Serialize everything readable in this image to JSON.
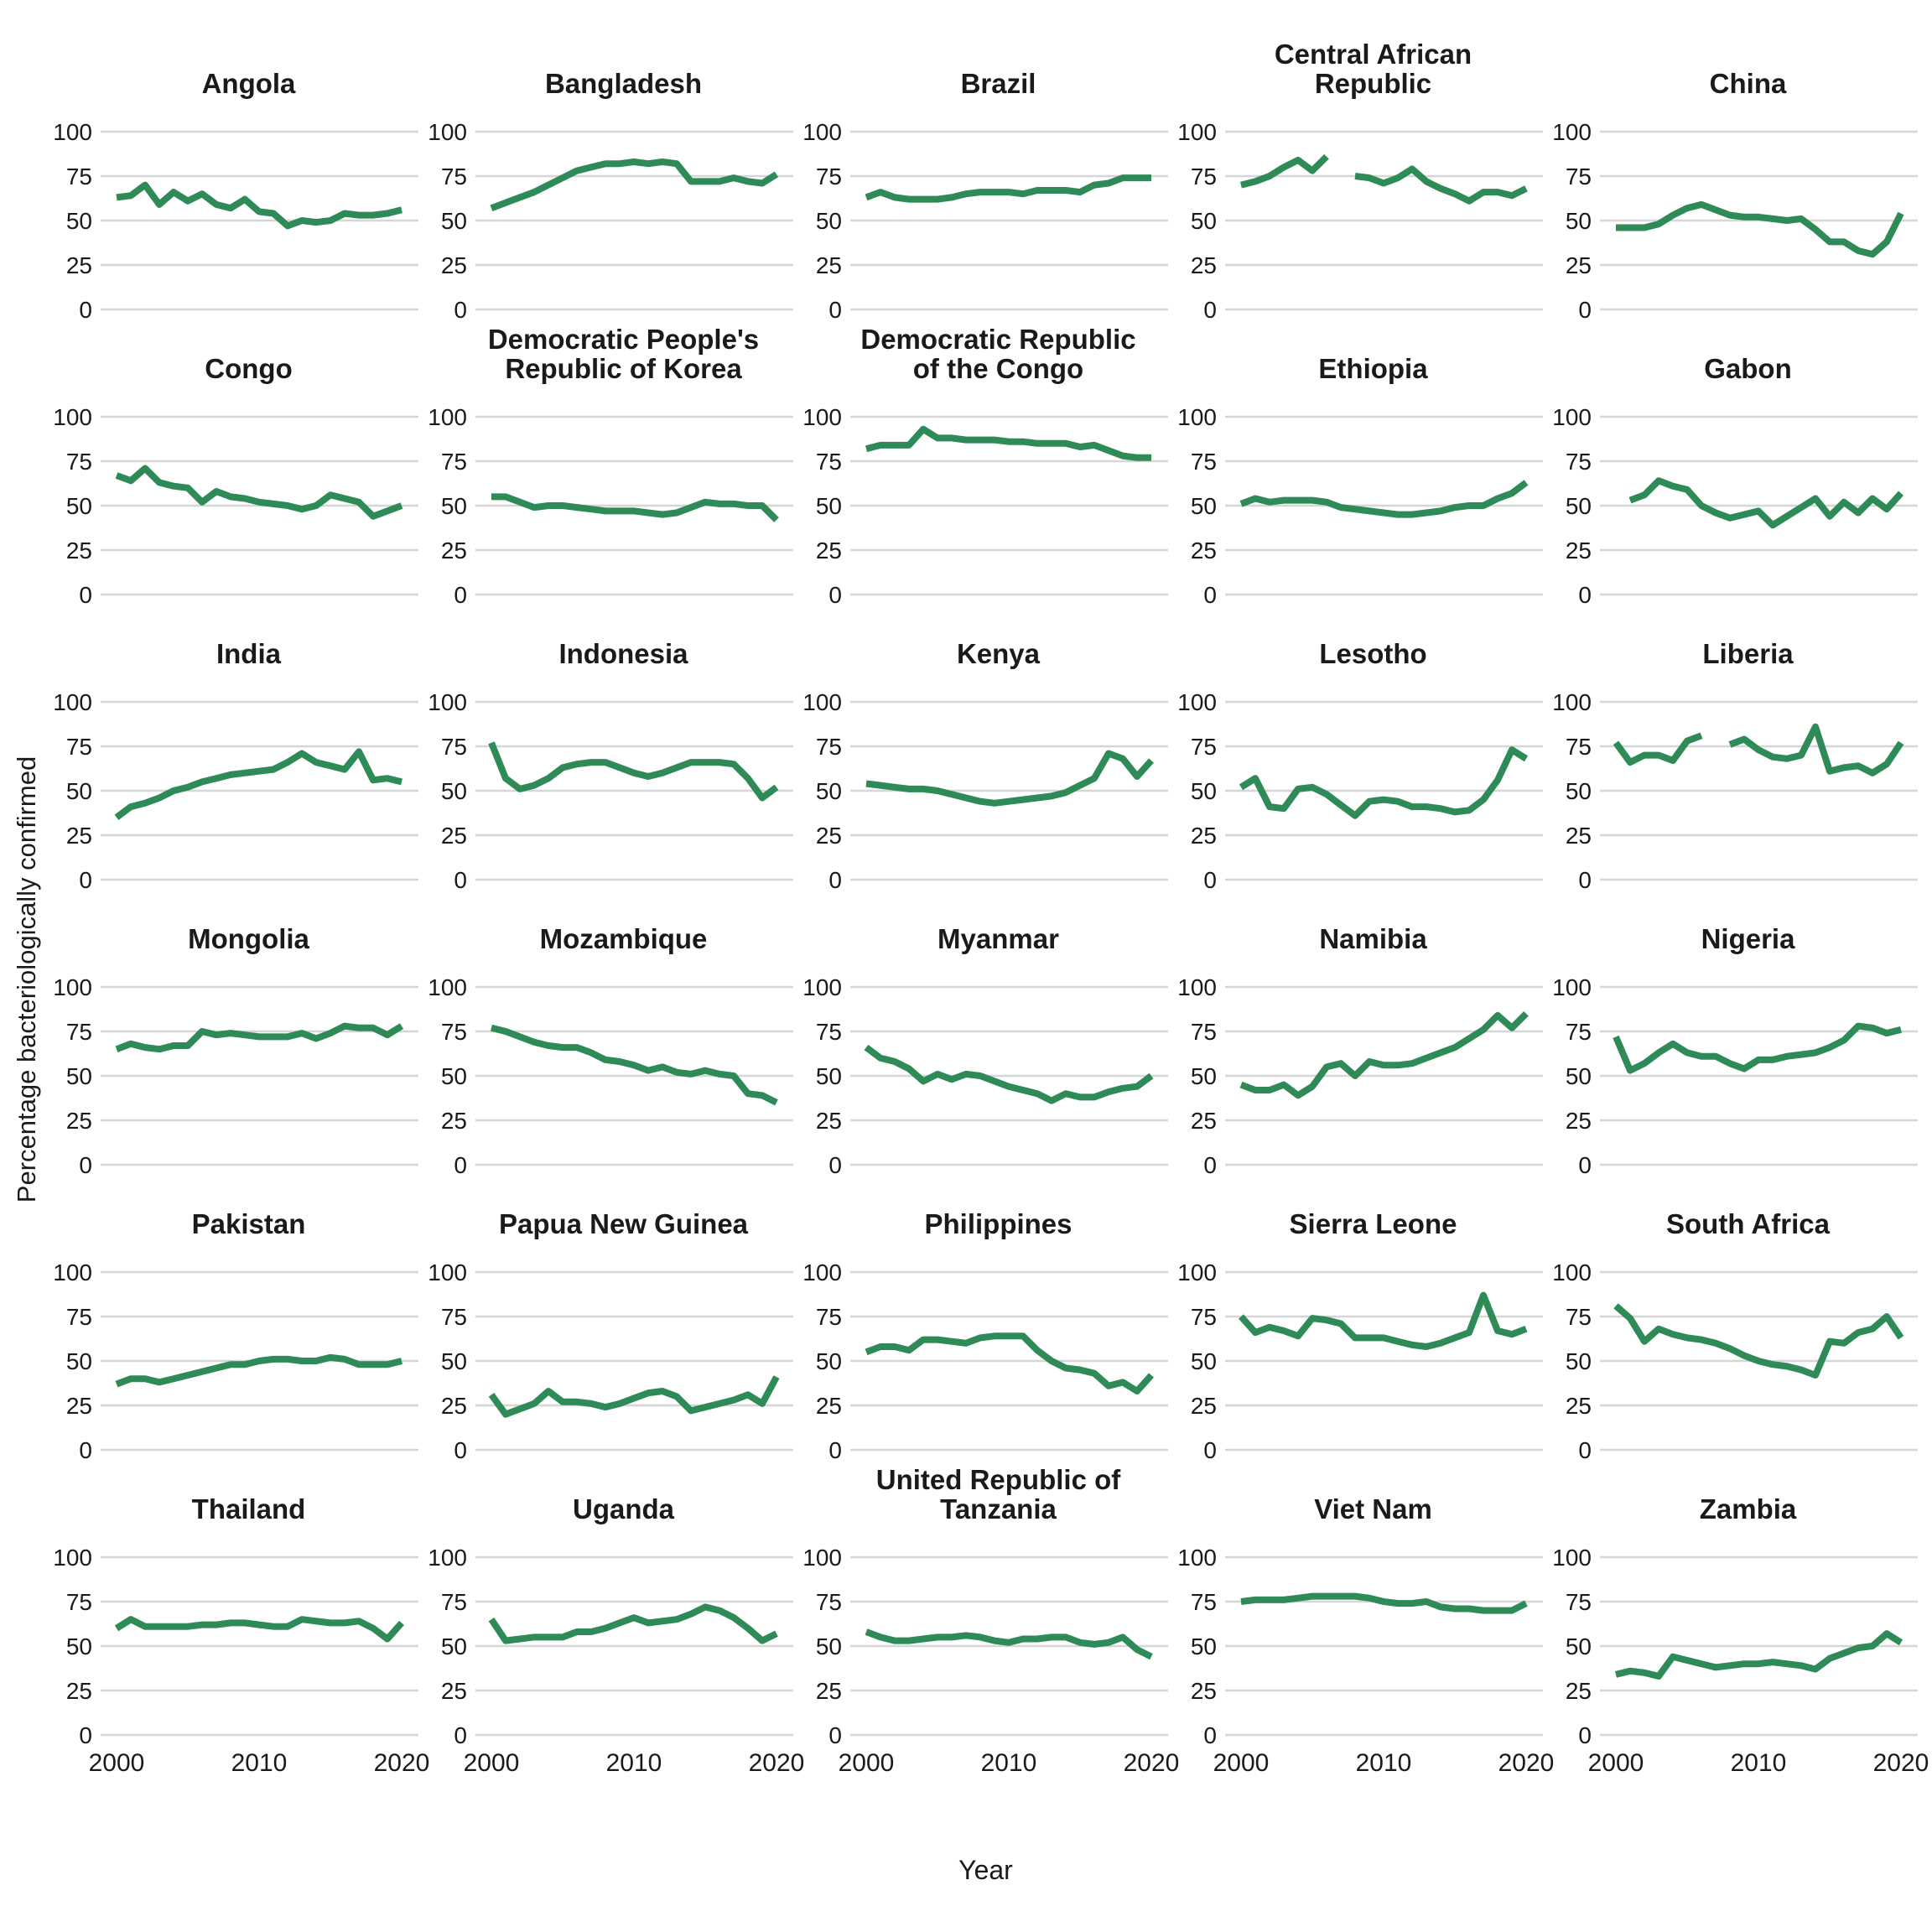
{
  "figure": {
    "x_axis_label": "Year",
    "y_axis_label": "Percentage bacteriologically confirmed"
  },
  "chart_data": {
    "type": "line",
    "title": "",
    "xlabel": "Year",
    "ylabel": "Percentage bacteriologically confirmed",
    "x_start_year": 2000,
    "x_end_year": 2020,
    "x_ticks": [
      2000,
      2010,
      2020
    ],
    "y_ticks": [
      0,
      25,
      50,
      75,
      100
    ],
    "ylim": [
      0,
      100
    ],
    "grid": "horizontal-only",
    "legend": "none",
    "line_color": "#2e8b57",
    "gridline_color": "#d6d6d6",
    "facets": [
      {
        "name": "Angola",
        "values": [
          63,
          64,
          70,
          59,
          66,
          61,
          65,
          59,
          57,
          62,
          55,
          54,
          47,
          50,
          49,
          50,
          54,
          53,
          53,
          54,
          56
        ]
      },
      {
        "name": "Bangladesh",
        "values": [
          57,
          60,
          63,
          66,
          70,
          74,
          78,
          80,
          82,
          82,
          83,
          82,
          83,
          82,
          72,
          72,
          72,
          74,
          72,
          71,
          76
        ]
      },
      {
        "name": "Brazil",
        "values": [
          63,
          66,
          63,
          62,
          62,
          62,
          63,
          65,
          66,
          66,
          66,
          65,
          67,
          67,
          67,
          66,
          70,
          71,
          74,
          74,
          74
        ]
      },
      {
        "name": "Central African Republic",
        "values": [
          70,
          72,
          75,
          80,
          84,
          78,
          86,
          null,
          75,
          74,
          71,
          74,
          79,
          72,
          68,
          65,
          61,
          66,
          66,
          64,
          68
        ]
      },
      {
        "name": "China",
        "values": [
          46,
          46,
          46,
          48,
          53,
          57,
          59,
          56,
          53,
          52,
          52,
          51,
          50,
          51,
          45,
          38,
          38,
          33,
          31,
          38,
          54
        ]
      },
      {
        "name": "Congo",
        "values": [
          67,
          64,
          71,
          63,
          61,
          60,
          52,
          58,
          55,
          54,
          52,
          51,
          50,
          48,
          50,
          56,
          54,
          52,
          44,
          47,
          50
        ]
      },
      {
        "name": "Democratic People's Republic of Korea",
        "values": [
          55,
          55,
          52,
          49,
          50,
          50,
          49,
          48,
          47,
          47,
          47,
          46,
          45,
          46,
          49,
          52,
          51,
          51,
          50,
          50,
          42
        ]
      },
      {
        "name": "Democratic Republic of the Congo",
        "values": [
          82,
          84,
          84,
          84,
          93,
          88,
          88,
          87,
          87,
          87,
          86,
          86,
          85,
          85,
          85,
          83,
          84,
          81,
          78,
          77,
          77
        ]
      },
      {
        "name": "Ethiopia",
        "values": [
          51,
          54,
          52,
          53,
          53,
          53,
          52,
          49,
          48,
          47,
          46,
          45,
          45,
          46,
          47,
          49,
          50,
          50,
          54,
          57,
          63
        ]
      },
      {
        "name": "Gabon",
        "values": [
          null,
          53,
          56,
          64,
          61,
          59,
          50,
          46,
          43,
          45,
          47,
          39,
          44,
          49,
          54,
          44,
          52,
          46,
          54,
          48,
          57
        ]
      },
      {
        "name": "India",
        "values": [
          35,
          41,
          43,
          46,
          50,
          52,
          55,
          57,
          59,
          60,
          61,
          62,
          66,
          71,
          66,
          64,
          62,
          72,
          56,
          57,
          55
        ]
      },
      {
        "name": "Indonesia",
        "values": [
          77,
          57,
          51,
          53,
          57,
          63,
          65,
          66,
          66,
          63,
          60,
          58,
          60,
          63,
          66,
          66,
          66,
          65,
          57,
          46,
          52
        ]
      },
      {
        "name": "Kenya",
        "values": [
          54,
          53,
          52,
          51,
          51,
          50,
          48,
          46,
          44,
          43,
          44,
          45,
          46,
          47,
          49,
          53,
          57,
          71,
          68,
          58,
          67
        ]
      },
      {
        "name": "Lesotho",
        "values": [
          52,
          57,
          41,
          40,
          51,
          52,
          48,
          42,
          36,
          44,
          45,
          44,
          41,
          41,
          40,
          38,
          39,
          45,
          56,
          73,
          68
        ]
      },
      {
        "name": "Liberia",
        "values": [
          77,
          66,
          70,
          70,
          67,
          78,
          81,
          null,
          76,
          79,
          73,
          69,
          68,
          70,
          86,
          61,
          63,
          64,
          60,
          65,
          77
        ]
      },
      {
        "name": "Mongolia",
        "values": [
          65,
          68,
          66,
          65,
          67,
          67,
          75,
          73,
          74,
          73,
          72,
          72,
          72,
          74,
          71,
          74,
          78,
          77,
          77,
          73,
          78
        ]
      },
      {
        "name": "Mozambique",
        "values": [
          77,
          75,
          72,
          69,
          67,
          66,
          66,
          63,
          59,
          58,
          56,
          53,
          55,
          52,
          51,
          53,
          51,
          50,
          40,
          39,
          35
        ]
      },
      {
        "name": "Myanmar",
        "values": [
          66,
          60,
          58,
          54,
          47,
          51,
          48,
          51,
          50,
          47,
          44,
          42,
          40,
          36,
          40,
          38,
          38,
          41,
          43,
          44,
          50
        ]
      },
      {
        "name": "Namibia",
        "values": [
          45,
          42,
          42,
          45,
          39,
          44,
          55,
          57,
          50,
          58,
          56,
          56,
          57,
          60,
          63,
          66,
          71,
          76,
          84,
          77,
          85
        ]
      },
      {
        "name": "Nigeria",
        "values": [
          72,
          53,
          57,
          63,
          68,
          63,
          61,
          61,
          57,
          54,
          59,
          59,
          61,
          62,
          63,
          66,
          70,
          78,
          77,
          74,
          76
        ]
      },
      {
        "name": "Pakistan",
        "values": [
          37,
          40,
          40,
          38,
          40,
          42,
          44,
          46,
          48,
          48,
          50,
          51,
          51,
          50,
          50,
          52,
          51,
          48,
          48,
          48,
          50
        ]
      },
      {
        "name": "Papua New Guinea",
        "values": [
          31,
          20,
          23,
          26,
          33,
          27,
          27,
          26,
          24,
          26,
          29,
          32,
          33,
          30,
          22,
          24,
          26,
          28,
          31,
          26,
          41
        ]
      },
      {
        "name": "Philippines",
        "values": [
          55,
          58,
          58,
          56,
          62,
          62,
          61,
          60,
          63,
          64,
          64,
          64,
          56,
          50,
          46,
          45,
          43,
          36,
          38,
          33,
          42
        ]
      },
      {
        "name": "Sierra Leone",
        "values": [
          75,
          66,
          69,
          67,
          64,
          74,
          73,
          71,
          63,
          63,
          63,
          61,
          59,
          58,
          60,
          63,
          66,
          87,
          67,
          65,
          68
        ]
      },
      {
        "name": "South Africa",
        "values": [
          81,
          74,
          61,
          68,
          65,
          63,
          62,
          60,
          57,
          53,
          50,
          48,
          47,
          45,
          42,
          61,
          60,
          66,
          68,
          75,
          63
        ]
      },
      {
        "name": "Thailand",
        "values": [
          60,
          65,
          61,
          61,
          61,
          61,
          62,
          62,
          63,
          63,
          62,
          61,
          61,
          65,
          64,
          63,
          63,
          64,
          60,
          54,
          63
        ]
      },
      {
        "name": "Uganda",
        "values": [
          65,
          53,
          54,
          55,
          55,
          55,
          58,
          58,
          60,
          63,
          66,
          63,
          64,
          65,
          68,
          72,
          70,
          66,
          60,
          53,
          57
        ]
      },
      {
        "name": "United Republic of Tanzania",
        "values": [
          58,
          55,
          53,
          53,
          54,
          55,
          55,
          56,
          55,
          53,
          52,
          54,
          54,
          55,
          55,
          52,
          51,
          52,
          55,
          48,
          44
        ]
      },
      {
        "name": "Viet Nam",
        "values": [
          75,
          76,
          76,
          76,
          77,
          78,
          78,
          78,
          78,
          77,
          75,
          74,
          74,
          75,
          72,
          71,
          71,
          70,
          70,
          70,
          74
        ]
      },
      {
        "name": "Zambia",
        "values": [
          34,
          36,
          35,
          33,
          44,
          42,
          40,
          38,
          39,
          40,
          40,
          41,
          40,
          39,
          37,
          43,
          46,
          49,
          50,
          57,
          52
        ]
      }
    ]
  }
}
